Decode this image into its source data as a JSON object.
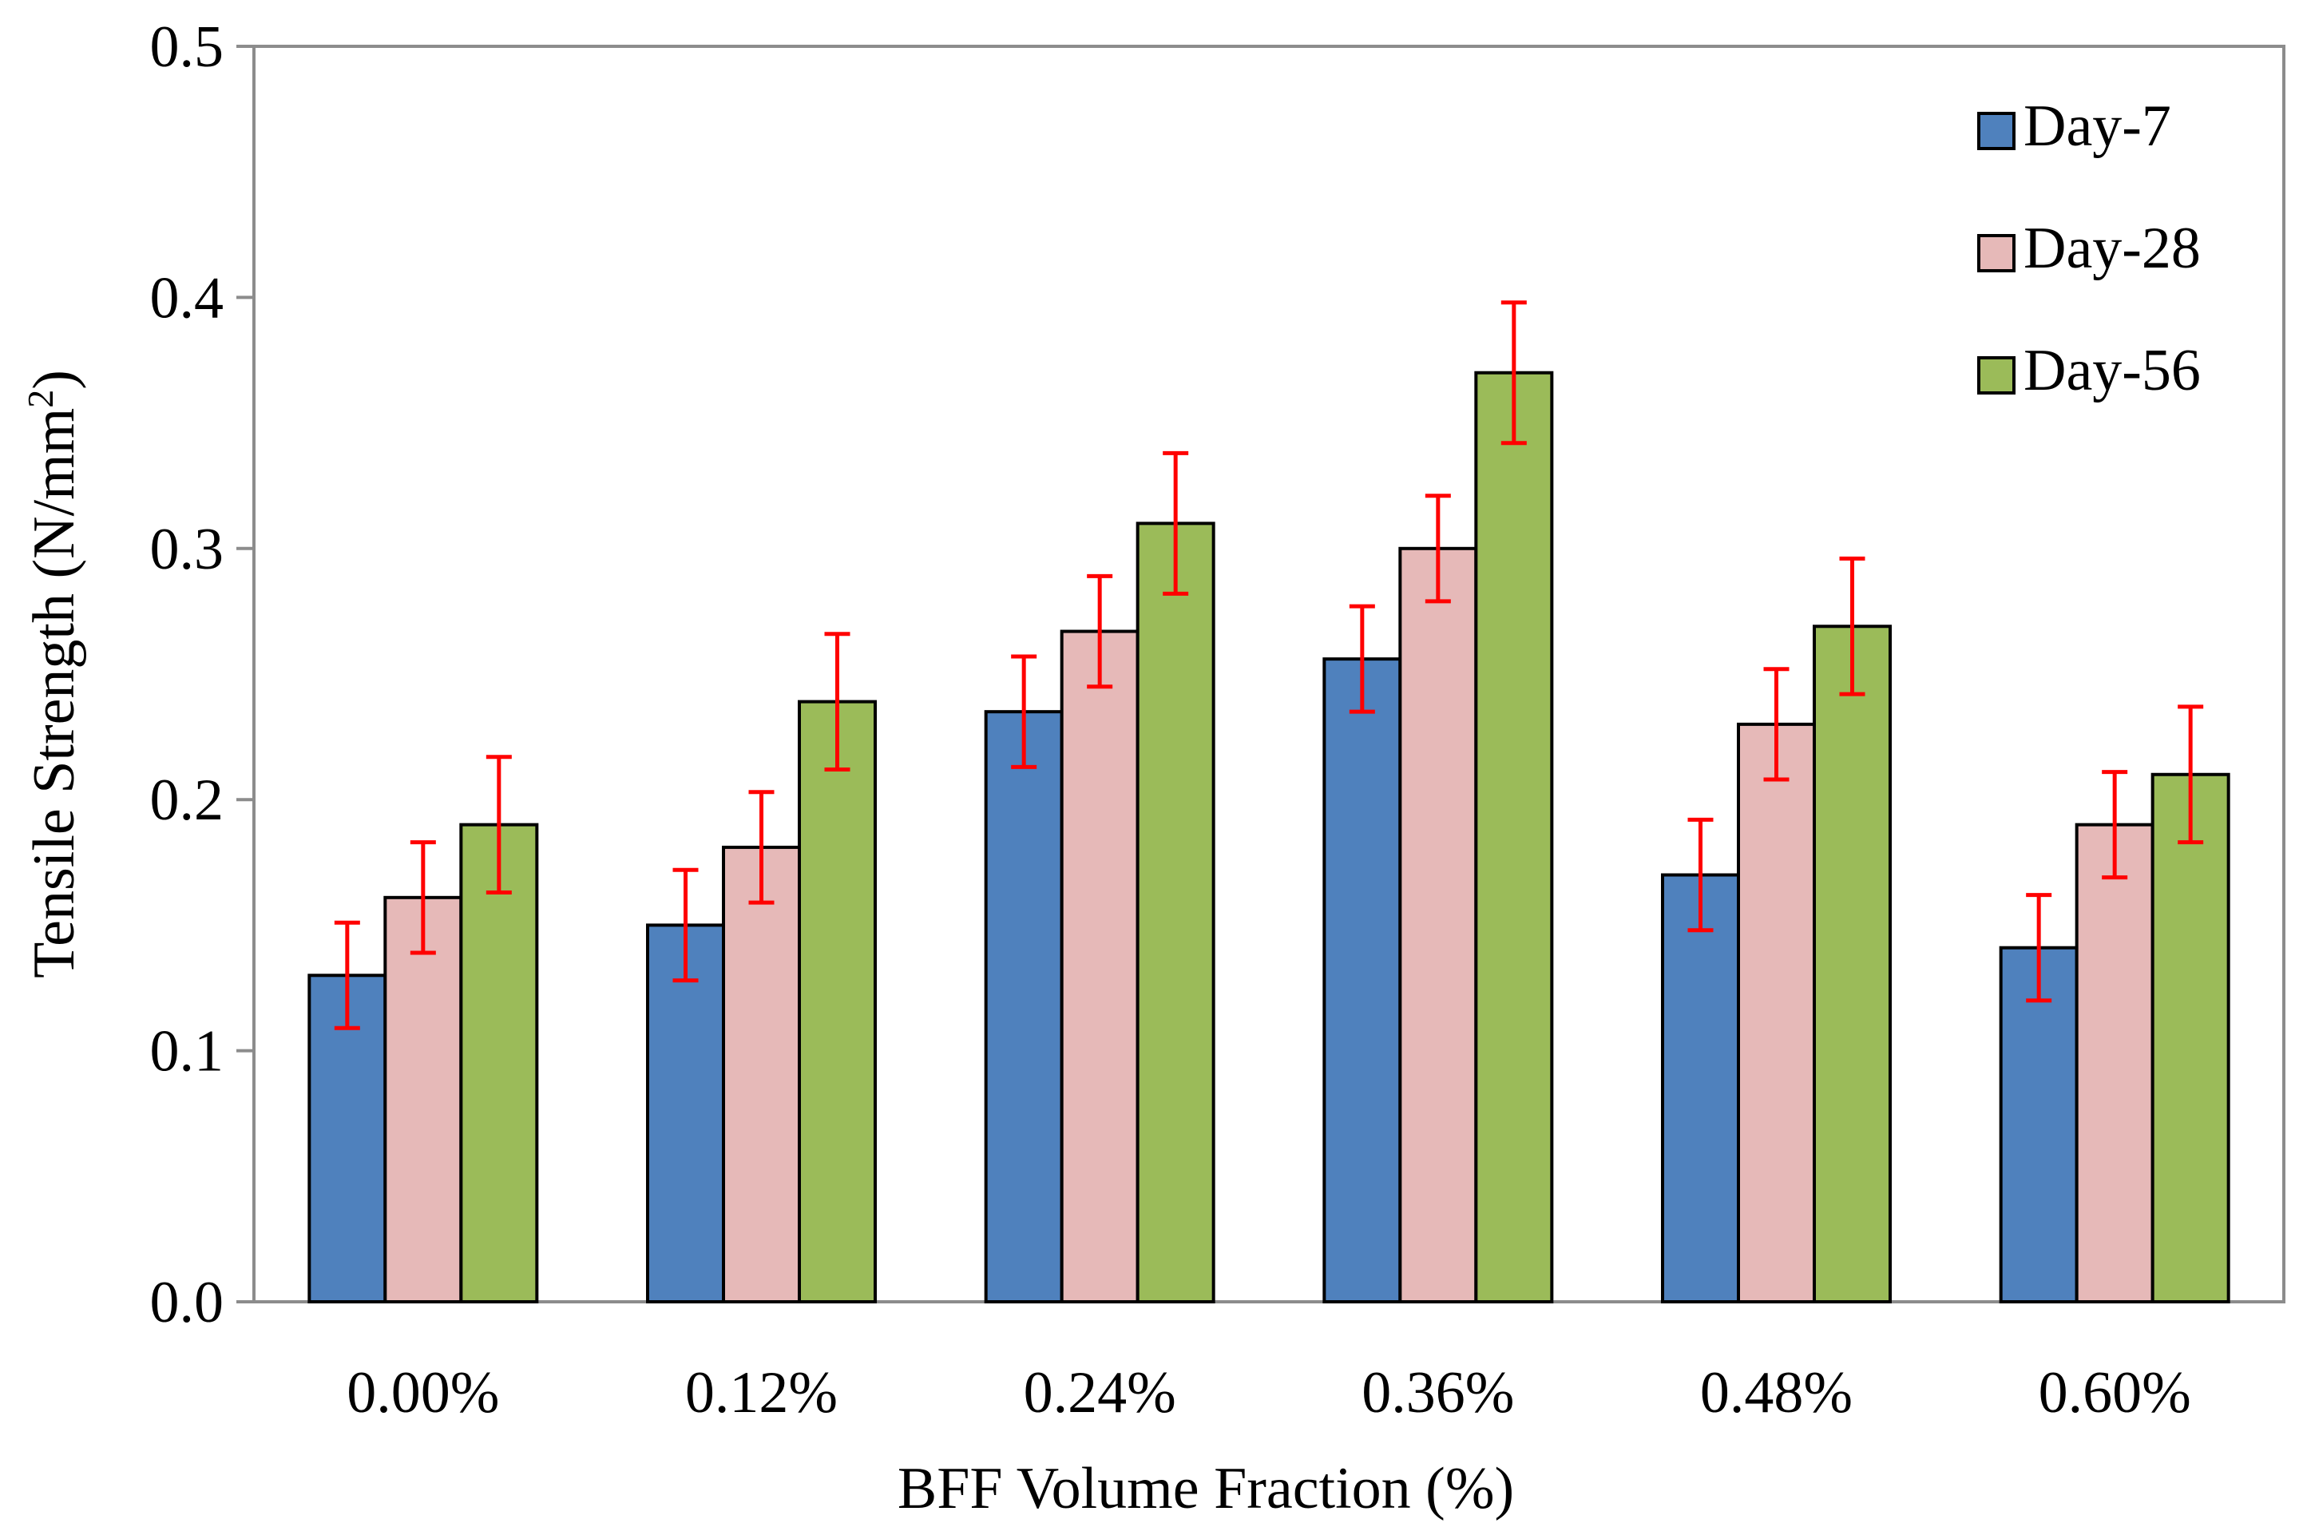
{
  "chart_data": {
    "type": "bar",
    "title": "",
    "xlabel": "BFF Volume Fraction (%)",
    "ylabel": "Tensile Strength (N/mm",
    "ylabel_superscript": "2",
    "ylabel_close": ")",
    "ylim": [
      0,
      0.5
    ],
    "yticks": [
      0.0,
      0.1,
      0.2,
      0.3,
      0.4,
      0.5
    ],
    "ytick_labels": [
      "0.0",
      "0.1",
      "0.2",
      "0.3",
      "0.4",
      "0.5"
    ],
    "grid": false,
    "legend_position": "top-right",
    "categories": [
      "0.00%",
      "0.12%",
      "0.24%",
      "0.36%",
      "0.48%",
      "0.60%"
    ],
    "series": [
      {
        "name": "Day-7",
        "color": "#4f81bd",
        "values": [
          0.13,
          0.15,
          0.235,
          0.256,
          0.17,
          0.141
        ],
        "error": [
          0.021,
          0.022,
          0.022,
          0.021,
          0.022,
          0.021
        ]
      },
      {
        "name": "Day-28",
        "color": "#e6b9b8",
        "values": [
          0.161,
          0.181,
          0.267,
          0.3,
          0.23,
          0.19
        ],
        "error": [
          0.022,
          0.022,
          0.022,
          0.021,
          0.022,
          0.021
        ]
      },
      {
        "name": "Day-56",
        "color": "#9bbb59",
        "values": [
          0.19,
          0.239,
          0.31,
          0.37,
          0.269,
          0.21
        ],
        "error": [
          0.027,
          0.027,
          0.028,
          0.028,
          0.027,
          0.027
        ]
      }
    ],
    "error_bar_color": "#ff0000"
  }
}
